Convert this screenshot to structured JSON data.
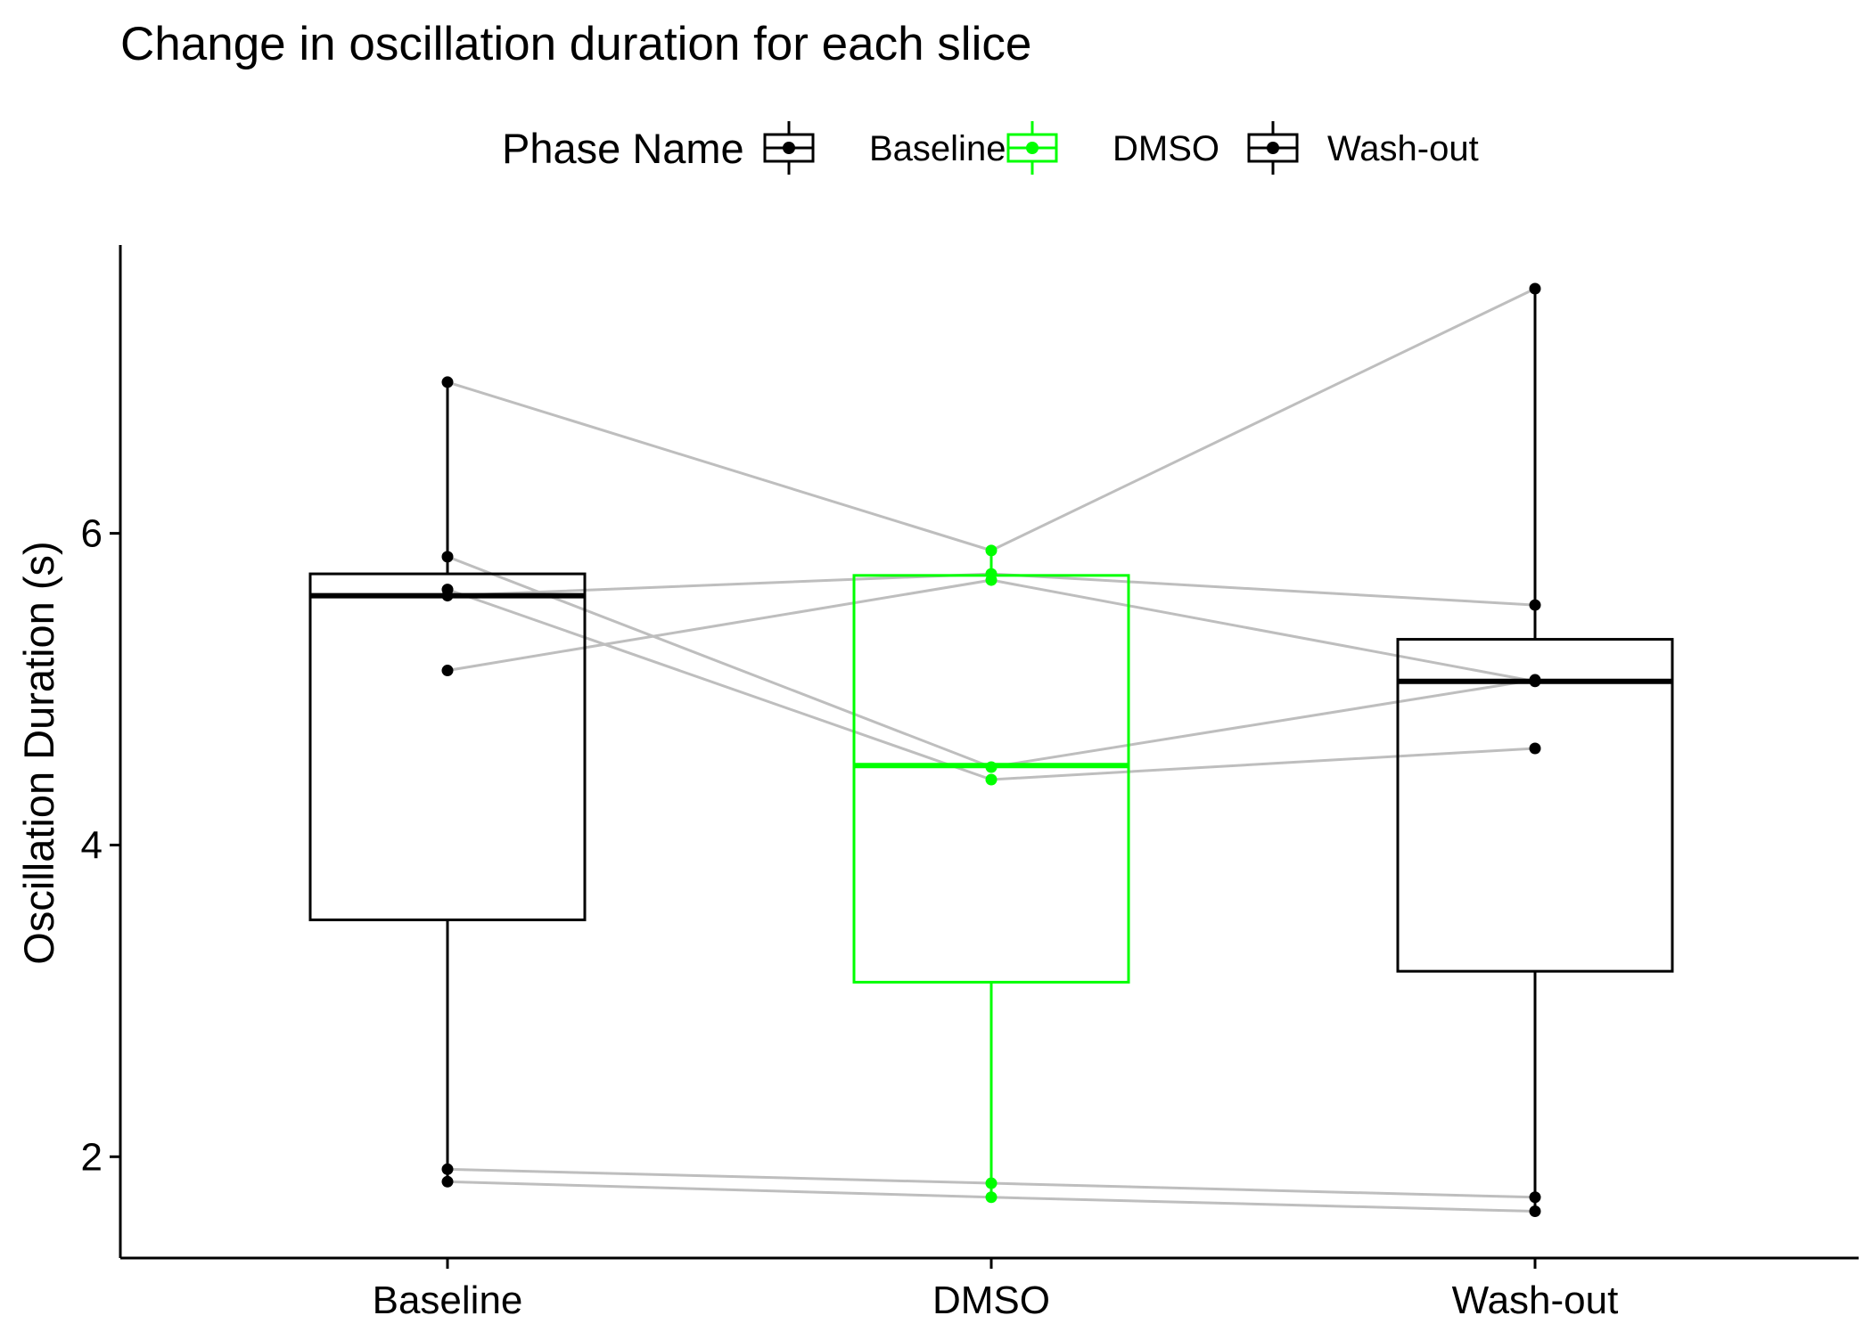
{
  "chart_data": {
    "type": "boxplot",
    "title": "Change in oscillation duration for each slice",
    "xlabel": "",
    "ylabel": "Oscillation Duration (s)",
    "ylim": [
      1.35,
      7.85
    ],
    "yticks": [
      2,
      4,
      6
    ],
    "categories": [
      "Baseline",
      "DMSO",
      "Wash-out"
    ],
    "grid": false,
    "legend": {
      "title": "Phase Name",
      "position": "top",
      "entries": [
        {
          "label": "Baseline",
          "color": "#000000"
        },
        {
          "label": "DMSO",
          "color": "#00ff00"
        },
        {
          "label": "Wash-out",
          "color": "#000000"
        }
      ]
    },
    "colors": {
      "Baseline": "#000000",
      "DMSO": "#00ff00",
      "Wash-out": "#000000",
      "connector": "#bebebe"
    },
    "boxes": [
      {
        "category": "Baseline",
        "q1": 3.52,
        "median": 5.6,
        "q3": 5.74,
        "whisker_low": 1.84,
        "whisker_high": 6.97
      },
      {
        "category": "DMSO",
        "q1": 3.12,
        "median": 4.51,
        "q3": 5.73,
        "whisker_low": 1.74,
        "whisker_high": 5.89
      },
      {
        "category": "Wash-out",
        "q1": 3.19,
        "median": 5.05,
        "q3": 5.32,
        "whisker_low": 1.65,
        "whisker_high": 7.57
      }
    ],
    "slices": [
      {
        "values": [
          6.97,
          5.89,
          7.57
        ]
      },
      {
        "values": [
          5.85,
          4.5,
          5.06
        ]
      },
      {
        "values": [
          5.64,
          4.42,
          4.62
        ]
      },
      {
        "values": [
          5.6,
          5.74,
          5.54
        ]
      },
      {
        "values": [
          5.12,
          5.7,
          5.05
        ]
      },
      {
        "values": [
          1.92,
          1.83,
          1.74
        ]
      },
      {
        "values": [
          1.84,
          1.74,
          1.65
        ]
      }
    ]
  }
}
